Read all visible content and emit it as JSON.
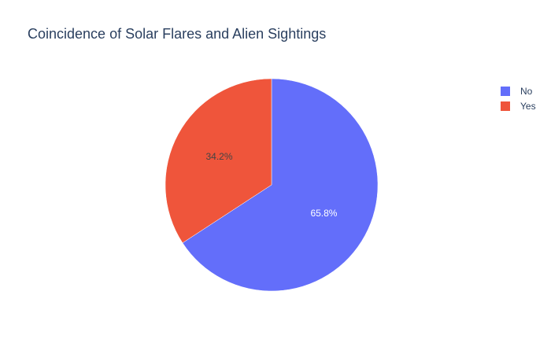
{
  "chart_data": {
    "type": "pie",
    "title": "Coincidence of Solar Flares and Alien Sightings",
    "labels": [
      "No",
      "Yes"
    ],
    "values": [
      65.8,
      34.2
    ],
    "value_labels": [
      "65.8%",
      "34.2%"
    ],
    "colors": [
      "#636efa",
      "#ef553b"
    ],
    "label_colors": [
      "#ffffff",
      "#444444"
    ],
    "legend_position": "top-right",
    "direction": "clockwise",
    "start": "top"
  }
}
